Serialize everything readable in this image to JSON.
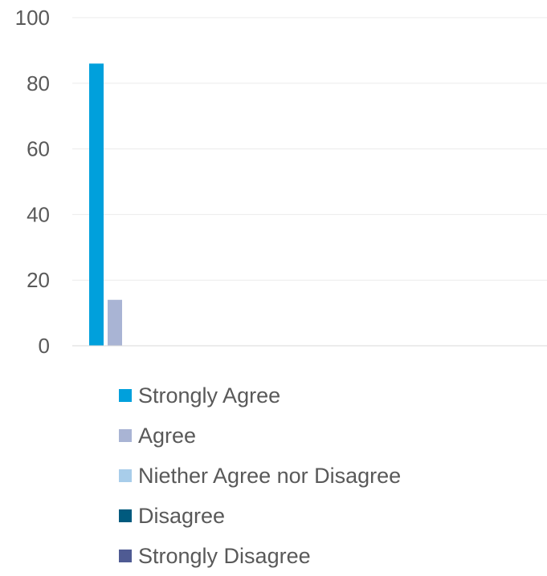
{
  "chart_data": {
    "type": "bar",
    "title": "",
    "xlabel": "",
    "ylabel": "",
    "ylim": [
      0,
      100
    ],
    "yticks": [
      "0",
      "20",
      "40",
      "60",
      "80",
      "100"
    ],
    "grid": true,
    "legend_position": "bottom",
    "categories": [
      ""
    ],
    "series": [
      {
        "name": "Strongly Agree",
        "values": [
          86
        ],
        "color": "#00A0DC"
      },
      {
        "name": "Agree",
        "values": [
          14
        ],
        "color": "#A9B4D4"
      },
      {
        "name": "Niether Agree nor Disagree",
        "values": [
          0
        ],
        "color": "#A8CDEA"
      },
      {
        "name": "Disagree",
        "values": [
          0
        ],
        "color": "#005A7E"
      },
      {
        "name": "Strongly Disagree",
        "values": [
          0
        ],
        "color": "#4F5B93"
      }
    ]
  }
}
